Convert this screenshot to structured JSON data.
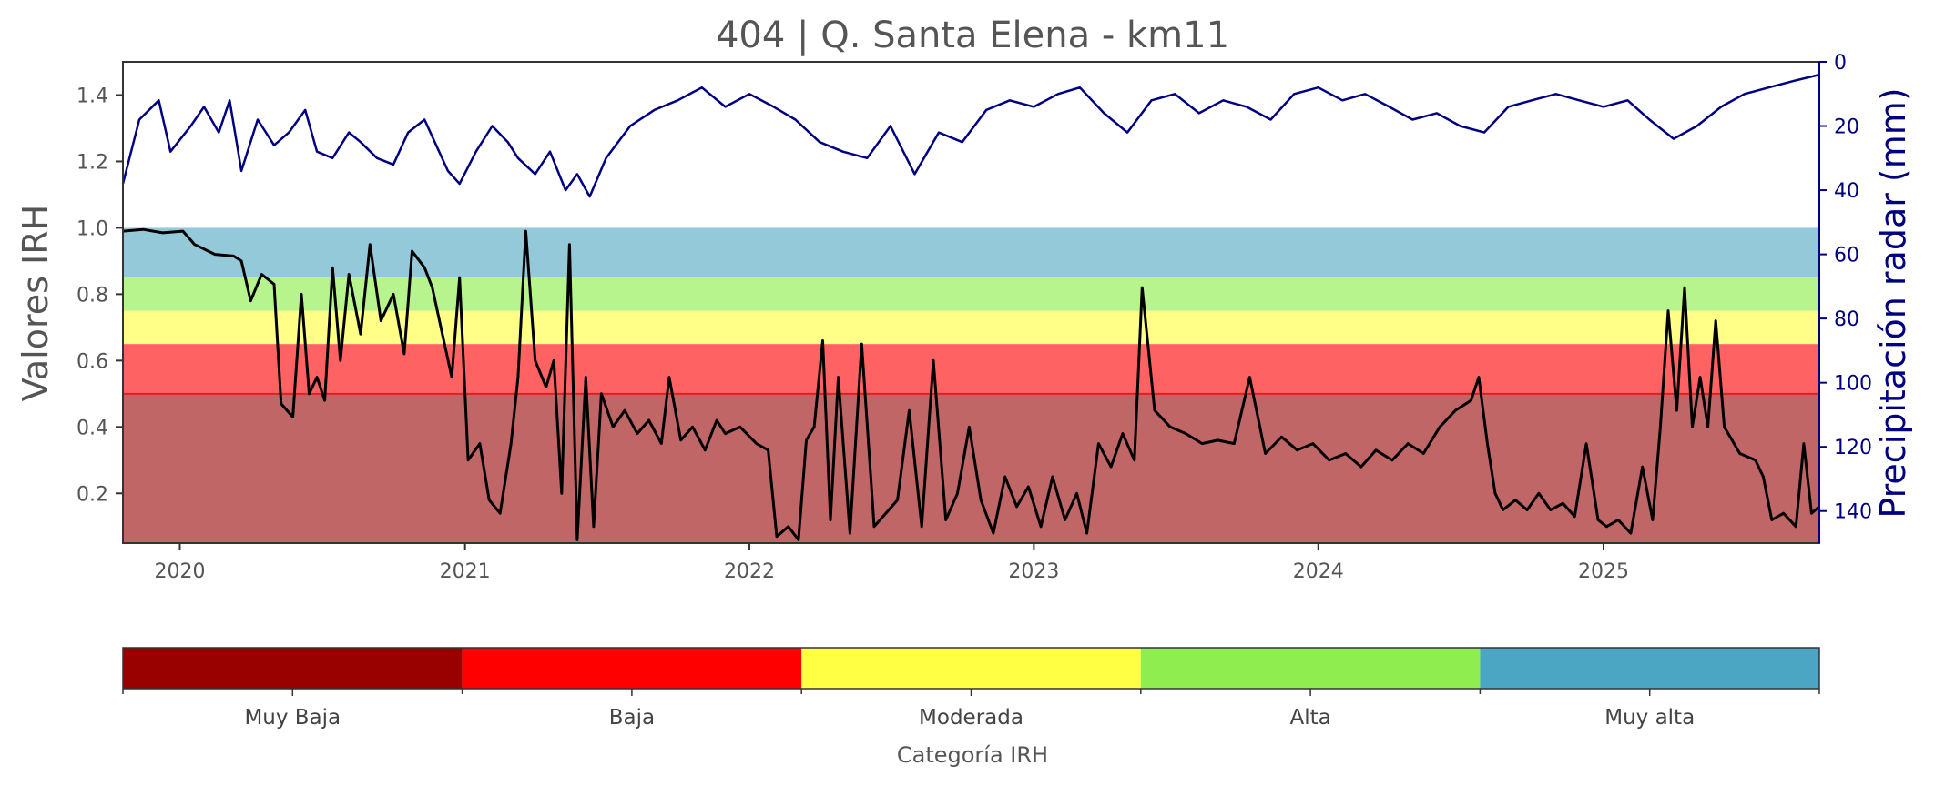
{
  "chart_data": {
    "type": "line",
    "title": "404 | Q. Santa Elena - km11",
    "ylabel": "Valores IRH",
    "y2label": "Precipitación radar (mm)",
    "x_tick_labels": [
      "2020",
      "2021",
      "2022",
      "2023",
      "2024",
      "2025"
    ],
    "y_tick_labels": [
      "0.2",
      "0.4",
      "0.6",
      "0.8",
      "1.0",
      "1.2",
      "1.4"
    ],
    "y2_tick_labels": [
      "0",
      "20",
      "40",
      "60",
      "80",
      "100",
      "120",
      "140"
    ],
    "xlim": [
      "2019-10-20",
      "2025-10-05"
    ],
    "ylim": [
      0.05,
      1.5
    ],
    "y2lim": [
      150,
      0
    ],
    "y2_inverted": true,
    "grid": false,
    "bands": [
      {
        "category": "Muy Baja",
        "from": 0,
        "to": 0.5,
        "color": "#c06666"
      },
      {
        "category": "Baja",
        "from": 0.5,
        "to": 0.65,
        "color": "#ff6262"
      },
      {
        "category": "Moderada",
        "from": 0.65,
        "to": 0.75,
        "color": "#ffff88"
      },
      {
        "category": "Alta",
        "from": 0.75,
        "to": 0.85,
        "color": "#b8f48e"
      },
      {
        "category": "Muy alta",
        "from": 0.85,
        "to": 1.0,
        "color": "#94c9da"
      }
    ],
    "threshold_line": {
      "y": 0.5,
      "color": "#e02020"
    },
    "series": [
      {
        "axis": "left",
        "color": "#000000",
        "points": [
          [
            "2019-10-20",
            0.99
          ],
          [
            "2019-11-15",
            0.995
          ],
          [
            "2019-12-10",
            0.985
          ],
          [
            "2020-01-05",
            0.99
          ],
          [
            "2020-01-20",
            0.95
          ],
          [
            "2020-02-15",
            0.92
          ],
          [
            "2020-03-10",
            0.915
          ],
          [
            "2020-03-20",
            0.9
          ],
          [
            "2020-04-01",
            0.78
          ],
          [
            "2020-04-15",
            0.86
          ],
          [
            "2020-05-01",
            0.83
          ],
          [
            "2020-05-10",
            0.47
          ],
          [
            "2020-05-25",
            0.43
          ],
          [
            "2020-06-05",
            0.8
          ],
          [
            "2020-06-15",
            0.5
          ],
          [
            "2020-06-25",
            0.55
          ],
          [
            "2020-07-05",
            0.48
          ],
          [
            "2020-07-15",
            0.88
          ],
          [
            "2020-07-25",
            0.6
          ],
          [
            "2020-08-05",
            0.86
          ],
          [
            "2020-08-20",
            0.68
          ],
          [
            "2020-09-01",
            0.95
          ],
          [
            "2020-09-15",
            0.72
          ],
          [
            "2020-10-01",
            0.8
          ],
          [
            "2020-10-15",
            0.62
          ],
          [
            "2020-10-25",
            0.93
          ],
          [
            "2020-11-10",
            0.88
          ],
          [
            "2020-11-20",
            0.82
          ],
          [
            "2020-12-01",
            0.7
          ],
          [
            "2020-12-15",
            0.55
          ],
          [
            "2020-12-25",
            0.85
          ],
          [
            "2021-01-05",
            0.3
          ],
          [
            "2021-01-20",
            0.35
          ],
          [
            "2021-02-01",
            0.18
          ],
          [
            "2021-02-15",
            0.14
          ],
          [
            "2021-03-01",
            0.35
          ],
          [
            "2021-03-10",
            0.55
          ],
          [
            "2021-03-20",
            0.99
          ],
          [
            "2021-04-01",
            0.6
          ],
          [
            "2021-04-15",
            0.52
          ],
          [
            "2021-04-25",
            0.6
          ],
          [
            "2021-05-05",
            0.2
          ],
          [
            "2021-05-15",
            0.95
          ],
          [
            "2021-05-25",
            0.06
          ],
          [
            "2021-06-05",
            0.55
          ],
          [
            "2021-06-15",
            0.1
          ],
          [
            "2021-06-25",
            0.5
          ],
          [
            "2021-07-10",
            0.4
          ],
          [
            "2021-07-25",
            0.45
          ],
          [
            "2021-08-10",
            0.38
          ],
          [
            "2021-08-25",
            0.42
          ],
          [
            "2021-09-10",
            0.35
          ],
          [
            "2021-09-20",
            0.55
          ],
          [
            "2021-10-05",
            0.36
          ],
          [
            "2021-10-20",
            0.4
          ],
          [
            "2021-11-05",
            0.33
          ],
          [
            "2021-11-20",
            0.42
          ],
          [
            "2021-12-01",
            0.38
          ],
          [
            "2021-12-20",
            0.4
          ],
          [
            "2022-01-10",
            0.35
          ],
          [
            "2022-01-25",
            0.33
          ],
          [
            "2022-02-05",
            0.07
          ],
          [
            "2022-02-20",
            0.1
          ],
          [
            "2022-03-05",
            0.06
          ],
          [
            "2022-03-15",
            0.36
          ],
          [
            "2022-03-25",
            0.4
          ],
          [
            "2022-04-05",
            0.66
          ],
          [
            "2022-04-15",
            0.12
          ],
          [
            "2022-04-25",
            0.55
          ],
          [
            "2022-05-10",
            0.08
          ],
          [
            "2022-05-25",
            0.65
          ],
          [
            "2022-06-10",
            0.1
          ],
          [
            "2022-06-25",
            0.14
          ],
          [
            "2022-07-10",
            0.18
          ],
          [
            "2022-07-25",
            0.45
          ],
          [
            "2022-08-10",
            0.1
          ],
          [
            "2022-08-25",
            0.6
          ],
          [
            "2022-09-10",
            0.12
          ],
          [
            "2022-09-25",
            0.2
          ],
          [
            "2022-10-10",
            0.4
          ],
          [
            "2022-10-25",
            0.18
          ],
          [
            "2022-11-10",
            0.08
          ],
          [
            "2022-11-25",
            0.25
          ],
          [
            "2022-12-10",
            0.16
          ],
          [
            "2022-12-25",
            0.22
          ],
          [
            "2023-01-10",
            0.1
          ],
          [
            "2023-01-25",
            0.25
          ],
          [
            "2023-02-10",
            0.12
          ],
          [
            "2023-02-25",
            0.2
          ],
          [
            "2023-03-10",
            0.08
          ],
          [
            "2023-03-25",
            0.35
          ],
          [
            "2023-04-10",
            0.28
          ],
          [
            "2023-04-25",
            0.38
          ],
          [
            "2023-05-10",
            0.3
          ],
          [
            "2023-05-20",
            0.82
          ],
          [
            "2023-06-05",
            0.45
          ],
          [
            "2023-06-25",
            0.4
          ],
          [
            "2023-07-15",
            0.38
          ],
          [
            "2023-08-05",
            0.35
          ],
          [
            "2023-08-25",
            0.36
          ],
          [
            "2023-09-15",
            0.35
          ],
          [
            "2023-10-05",
            0.55
          ],
          [
            "2023-10-25",
            0.32
          ],
          [
            "2023-11-15",
            0.37
          ],
          [
            "2023-12-05",
            0.33
          ],
          [
            "2023-12-25",
            0.35
          ],
          [
            "2024-01-15",
            0.3
          ],
          [
            "2024-02-05",
            0.32
          ],
          [
            "2024-02-25",
            0.28
          ],
          [
            "2024-03-15",
            0.33
          ],
          [
            "2024-04-05",
            0.3
          ],
          [
            "2024-04-25",
            0.35
          ],
          [
            "2024-05-15",
            0.32
          ],
          [
            "2024-06-05",
            0.4
          ],
          [
            "2024-06-25",
            0.45
          ],
          [
            "2024-07-15",
            0.48
          ],
          [
            "2024-07-25",
            0.55
          ],
          [
            "2024-08-05",
            0.35
          ],
          [
            "2024-08-15",
            0.2
          ],
          [
            "2024-08-25",
            0.15
          ],
          [
            "2024-09-10",
            0.18
          ],
          [
            "2024-09-25",
            0.15
          ],
          [
            "2024-10-10",
            0.2
          ],
          [
            "2024-10-25",
            0.15
          ],
          [
            "2024-11-10",
            0.17
          ],
          [
            "2024-11-25",
            0.13
          ],
          [
            "2024-12-10",
            0.35
          ],
          [
            "2024-12-25",
            0.12
          ],
          [
            "2025-01-05",
            0.1
          ],
          [
            "2025-01-20",
            0.12
          ],
          [
            "2025-02-05",
            0.08
          ],
          [
            "2025-02-20",
            0.28
          ],
          [
            "2025-03-05",
            0.12
          ],
          [
            "2025-03-15",
            0.4
          ],
          [
            "2025-03-25",
            0.75
          ],
          [
            "2025-04-05",
            0.45
          ],
          [
            "2025-04-15",
            0.82
          ],
          [
            "2025-04-25",
            0.4
          ],
          [
            "2025-05-05",
            0.55
          ],
          [
            "2025-05-15",
            0.4
          ],
          [
            "2025-05-25",
            0.72
          ],
          [
            "2025-06-05",
            0.4
          ],
          [
            "2025-06-25",
            0.32
          ],
          [
            "2025-07-15",
            0.3
          ],
          [
            "2025-07-25",
            0.25
          ],
          [
            "2025-08-05",
            0.12
          ],
          [
            "2025-08-20",
            0.14
          ],
          [
            "2025-09-05",
            0.1
          ],
          [
            "2025-09-15",
            0.35
          ],
          [
            "2025-09-25",
            0.14
          ],
          [
            "2025-10-05",
            0.16
          ]
        ]
      },
      {
        "axis": "right",
        "color": "#000080",
        "points": [
          [
            "2019-10-20",
            38
          ],
          [
            "2019-11-10",
            18
          ],
          [
            "2019-12-05",
            12
          ],
          [
            "2019-12-20",
            28
          ],
          [
            "2020-01-15",
            20
          ],
          [
            "2020-02-01",
            14
          ],
          [
            "2020-02-20",
            22
          ],
          [
            "2020-03-05",
            12
          ],
          [
            "2020-03-20",
            34
          ],
          [
            "2020-04-10",
            18
          ],
          [
            "2020-05-01",
            26
          ],
          [
            "2020-05-20",
            22
          ],
          [
            "2020-06-10",
            15
          ],
          [
            "2020-06-25",
            28
          ],
          [
            "2020-07-15",
            30
          ],
          [
            "2020-08-05",
            22
          ],
          [
            "2020-08-20",
            25
          ],
          [
            "2020-09-10",
            30
          ],
          [
            "2020-10-01",
            32
          ],
          [
            "2020-10-20",
            22
          ],
          [
            "2020-11-10",
            18
          ],
          [
            "2020-12-10",
            34
          ],
          [
            "2020-12-25",
            38
          ],
          [
            "2021-01-15",
            28
          ],
          [
            "2021-02-05",
            20
          ],
          [
            "2021-02-25",
            25
          ],
          [
            "2021-03-10",
            30
          ],
          [
            "2021-04-01",
            35
          ],
          [
            "2021-04-20",
            28
          ],
          [
            "2021-05-10",
            40
          ],
          [
            "2021-05-25",
            35
          ],
          [
            "2021-06-10",
            42
          ],
          [
            "2021-07-01",
            30
          ],
          [
            "2021-08-01",
            20
          ],
          [
            "2021-09-01",
            15
          ],
          [
            "2021-10-01",
            12
          ],
          [
            "2021-11-01",
            8
          ],
          [
            "2021-12-01",
            14
          ],
          [
            "2022-01-01",
            10
          ],
          [
            "2022-02-01",
            14
          ],
          [
            "2022-03-01",
            18
          ],
          [
            "2022-04-01",
            25
          ],
          [
            "2022-05-01",
            28
          ],
          [
            "2022-06-01",
            30
          ],
          [
            "2022-07-01",
            20
          ],
          [
            "2022-08-01",
            35
          ],
          [
            "2022-09-01",
            22
          ],
          [
            "2022-10-01",
            25
          ],
          [
            "2022-11-01",
            15
          ],
          [
            "2022-12-01",
            12
          ],
          [
            "2023-01-01",
            14
          ],
          [
            "2023-02-01",
            10
          ],
          [
            "2023-03-01",
            8
          ],
          [
            "2023-04-01",
            16
          ],
          [
            "2023-05-01",
            22
          ],
          [
            "2023-06-01",
            12
          ],
          [
            "2023-07-01",
            10
          ],
          [
            "2023-08-01",
            16
          ],
          [
            "2023-09-01",
            12
          ],
          [
            "2023-10-01",
            14
          ],
          [
            "2023-11-01",
            18
          ],
          [
            "2023-12-01",
            10
          ],
          [
            "2024-01-01",
            8
          ],
          [
            "2024-02-01",
            12
          ],
          [
            "2024-03-01",
            10
          ],
          [
            "2024-04-01",
            14
          ],
          [
            "2024-05-01",
            18
          ],
          [
            "2024-06-01",
            16
          ],
          [
            "2024-07-01",
            20
          ],
          [
            "2024-08-01",
            22
          ],
          [
            "2024-09-01",
            14
          ],
          [
            "2024-10-01",
            12
          ],
          [
            "2024-11-01",
            10
          ],
          [
            "2024-12-01",
            12
          ],
          [
            "2025-01-01",
            14
          ],
          [
            "2025-02-01",
            12
          ],
          [
            "2025-03-01",
            18
          ],
          [
            "2025-04-01",
            24
          ],
          [
            "2025-05-01",
            20
          ],
          [
            "2025-06-01",
            14
          ],
          [
            "2025-07-01",
            10
          ],
          [
            "2025-08-01",
            8
          ],
          [
            "2025-09-01",
            6
          ],
          [
            "2025-10-05",
            4
          ]
        ]
      }
    ]
  },
  "colorbar": {
    "xlabel": "Categoría IRH",
    "categories": [
      {
        "label": "Muy Baja",
        "color": "#990000"
      },
      {
        "label": "Baja",
        "color": "#ff0000"
      },
      {
        "label": "Moderada",
        "color": "#ffff44"
      },
      {
        "label": "Alta",
        "color": "#8fed4f"
      },
      {
        "label": "Muy alta",
        "color": "#4ba6c4"
      }
    ]
  }
}
